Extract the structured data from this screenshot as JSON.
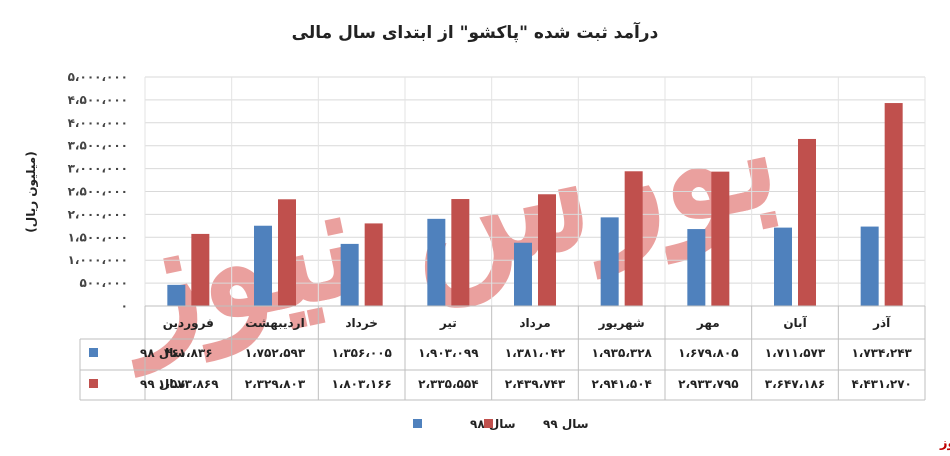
{
  "chart_data": {
    "type": "bar",
    "title": "درآمد ثبت شده \"پاکشو\" از ابتدای سال مالی",
    "ylabel": "(میلیون ریال)",
    "ylim": [
      0,
      5000000
    ],
    "yticks": [
      "۰",
      "۵۰۰،۰۰۰",
      "۱،۰۰۰،۰۰۰",
      "۱،۵۰۰،۰۰۰",
      "۲،۰۰۰،۰۰۰",
      "۲،۵۰۰،۰۰۰",
      "۳،۰۰۰،۰۰۰",
      "۳،۵۰۰،۰۰۰",
      "۴،۰۰۰،۰۰۰",
      "۴،۵۰۰،۰۰۰",
      "۵،۰۰۰،۰۰۰"
    ],
    "ytick_values": [
      0,
      500000,
      1000000,
      1500000,
      2000000,
      2500000,
      3000000,
      3500000,
      4000000,
      4500000,
      5000000
    ],
    "categories": [
      "فروردین",
      "اردیبهشت",
      "خرداد",
      "تیر",
      "مرداد",
      "شهریور",
      "مهر",
      "آبان",
      "آذر"
    ],
    "series": [
      {
        "name": "سال ۹۸",
        "color": "#4f81bd",
        "values": [
          461836,
          1752593,
          1356005,
          1903099,
          1381042,
          1935328,
          1679805,
          1711573,
          1734243
        ],
        "labels": [
          "۴۶۱،۸۳۶",
          "۱،۷۵۲،۵۹۳",
          "۱،۳۵۶،۰۰۵",
          "۱،۹۰۳،۰۹۹",
          "۱،۳۸۱،۰۴۲",
          "۱،۹۳۵،۳۲۸",
          "۱،۶۷۹،۸۰۵",
          "۱،۷۱۱،۵۷۳",
          "۱،۷۳۴،۲۴۳"
        ]
      },
      {
        "name": "سال ۹۹",
        "color": "#c0504d",
        "values": [
          1573869,
          2329803,
          1803166,
          2335554,
          2439743,
          2941504,
          2933795,
          3647186,
          4431270
        ],
        "labels": [
          "۱،۵۷۳،۸۶۹",
          "۲،۳۲۹،۸۰۳",
          "۱،۸۰۳،۱۶۶",
          "۲،۳۳۵،۵۵۴",
          "۲،۴۳۹،۷۴۳",
          "۲،۹۴۱،۵۰۴",
          "۲،۹۳۳،۷۹۵",
          "۳،۶۴۷،۱۸۶",
          "۴،۴۳۱،۲۷۰"
        ]
      }
    ],
    "grid": true,
    "legend": "bottom",
    "data_table": true
  },
  "watermark": {
    "text": "بورس نیوز",
    "color": "#c00000"
  }
}
